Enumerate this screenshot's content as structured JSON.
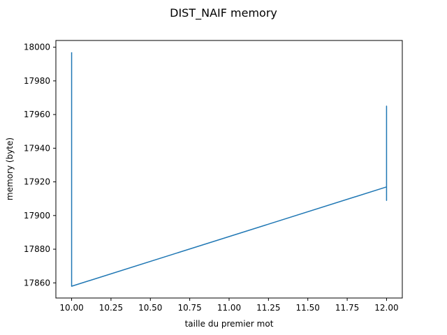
{
  "chart_data": {
    "type": "line",
    "title": "DIST_NAIF memory",
    "xlabel": "taille du premier mot",
    "ylabel": "memory (byte)",
    "xlim": [
      9.9,
      12.1
    ],
    "ylim": [
      17851,
      18004
    ],
    "xticks": [
      10.0,
      10.25,
      10.5,
      10.75,
      11.0,
      11.25,
      11.5,
      11.75,
      12.0
    ],
    "xtick_labels": [
      "10.00",
      "10.25",
      "10.50",
      "10.75",
      "11.00",
      "11.25",
      "11.50",
      "11.75",
      "12.00"
    ],
    "yticks": [
      17860,
      17880,
      17900,
      17920,
      17940,
      17960,
      17980,
      18000
    ],
    "ytick_labels": [
      "17860",
      "17880",
      "17900",
      "17920",
      "17940",
      "17960",
      "17980",
      "18000"
    ],
    "grid": false,
    "series": [
      {
        "color": "#1f77b4",
        "x": [
          10,
          10,
          10,
          12,
          12,
          12,
          12,
          12
        ],
        "y": [
          17997,
          17858,
          17858,
          17917,
          17965,
          17909,
          17917,
          17909
        ]
      }
    ]
  }
}
